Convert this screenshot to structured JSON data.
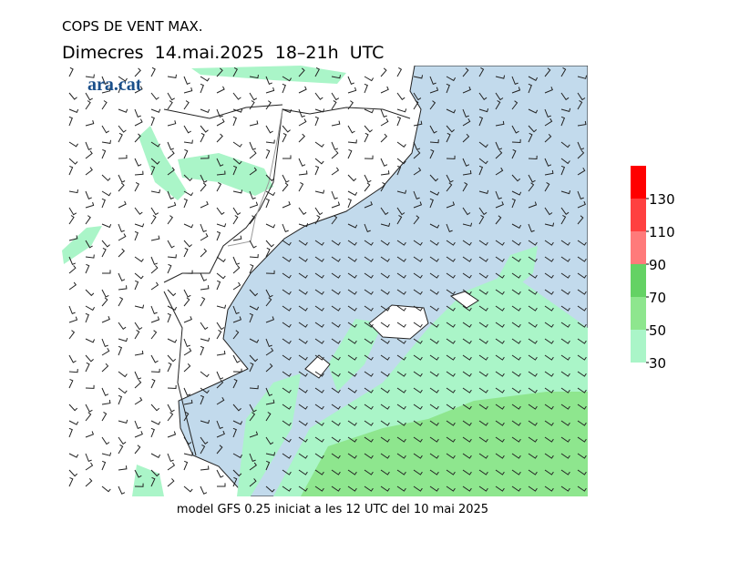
{
  "header": {
    "title": "COPS DE VENT MAX.",
    "subtitle": "Dimecres  14.mai.2025  18–21h  UTC",
    "logo": "ara.cat"
  },
  "colorbar": {
    "ticks": [
      30,
      50,
      70,
      90,
      110,
      130
    ],
    "colors": [
      "#aaf5c8",
      "#8ee68e",
      "#64d264",
      "#ff7a7a",
      "#ff4040",
      "#ff0000"
    ]
  },
  "footer": "model GFS 0.25 iniciat a les 12 UTC del 10 mai 2025"
}
